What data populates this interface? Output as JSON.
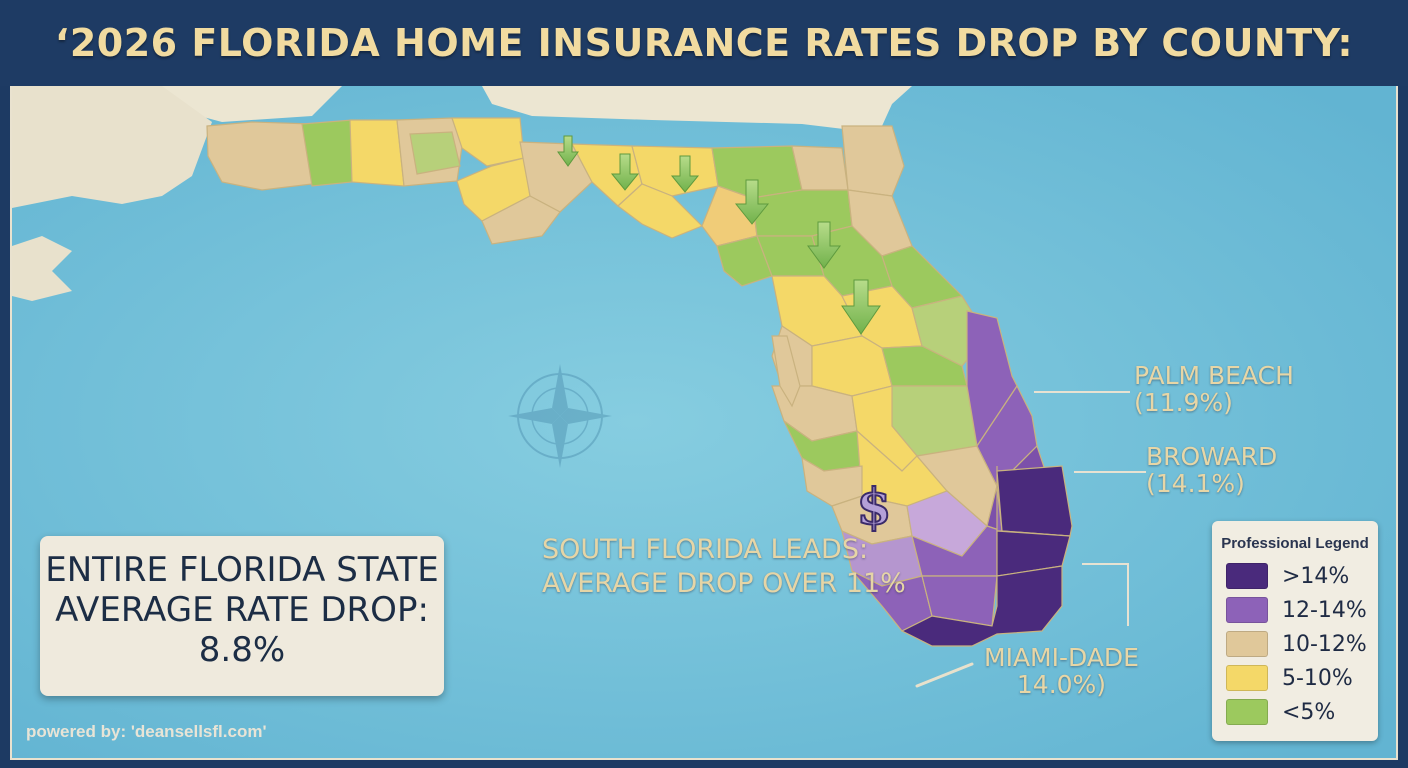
{
  "header": {
    "title": "‘2026 FLORIDA HOME INSURANCE RATES DROP BY COUNTY:"
  },
  "counties": [
    {
      "name": "PALM BEACH",
      "value": "(11.9%)"
    },
    {
      "name": "BROWARD",
      "value": "(14.1%)"
    },
    {
      "name": "MIAMI-DADE",
      "value": "14.0%)"
    }
  ],
  "callout": {
    "line1": "SOUTH FLORIDA LEADS:",
    "line2": "AVERAGE DROP OVER 11%"
  },
  "state_box": {
    "line1": "ENTIRE FLORIDA STATE",
    "line2": "AVERAGE RATE DROP:",
    "line3": "8.8%"
  },
  "legend": {
    "title": "Professional Legend",
    "items": [
      {
        "label": ">14%",
        "color": "#4a2a7c"
      },
      {
        "label": "12-14%",
        "color": "#8d62b8"
      },
      {
        "label": "10-12%",
        "color": "#e0c89a"
      },
      {
        "label": "5-10%",
        "color": "#f4d868"
      },
      {
        "label": "<5%",
        "color": "#9cc95e"
      }
    ]
  },
  "map_icons": {
    "currency": "$",
    "compass": "compass-rose-icon",
    "arrows": "down-arrow-icon"
  },
  "footer": {
    "powered": "powered by: 'deansellsfl.com'"
  }
}
